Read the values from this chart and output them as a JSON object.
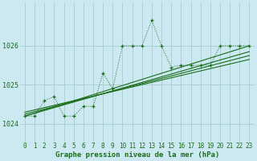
{
  "bg_color": "#cce8f0",
  "grid_color": "#a8ccd0",
  "line_color": "#1a6e1a",
  "xlabel": "Graphe pression niveau de la mer (hPa)",
  "ylabel_ticks": [
    1024,
    1025,
    1026
  ],
  "xlim": [
    -0.5,
    23.5
  ],
  "ylim": [
    1023.55,
    1027.1
  ],
  "x_ticks": [
    0,
    1,
    2,
    3,
    4,
    5,
    6,
    7,
    8,
    9,
    10,
    11,
    12,
    13,
    14,
    15,
    16,
    17,
    18,
    19,
    20,
    21,
    22,
    23
  ],
  "main_x": [
    0,
    1,
    2,
    3,
    4,
    5,
    6,
    7,
    8,
    9,
    10,
    11,
    12,
    13,
    14,
    15,
    16,
    17,
    18,
    19,
    20,
    21,
    22,
    23
  ],
  "main_y": [
    1024.2,
    1024.2,
    1024.6,
    1024.7,
    1024.2,
    1024.2,
    1024.45,
    1024.45,
    1025.3,
    1024.9,
    1026.0,
    1026.0,
    1026.0,
    1026.65,
    1026.0,
    1025.45,
    1025.5,
    1025.5,
    1025.5,
    1025.5,
    1026.0,
    1026.0,
    1026.0,
    1026.0
  ],
  "trend_lines": [
    {
      "x0": 0,
      "y0": 1024.2,
      "x1": 23,
      "y1": 1026.0
    },
    {
      "x0": 0,
      "y0": 1024.2,
      "x1": 23,
      "y1": 1025.85
    },
    {
      "x0": 0,
      "y0": 1024.25,
      "x1": 23,
      "y1": 1025.75
    },
    {
      "x0": 0,
      "y0": 1024.3,
      "x1": 23,
      "y1": 1025.65
    }
  ],
  "xlabel_fontsize": 6.5,
  "tick_fontsize": 5.5
}
